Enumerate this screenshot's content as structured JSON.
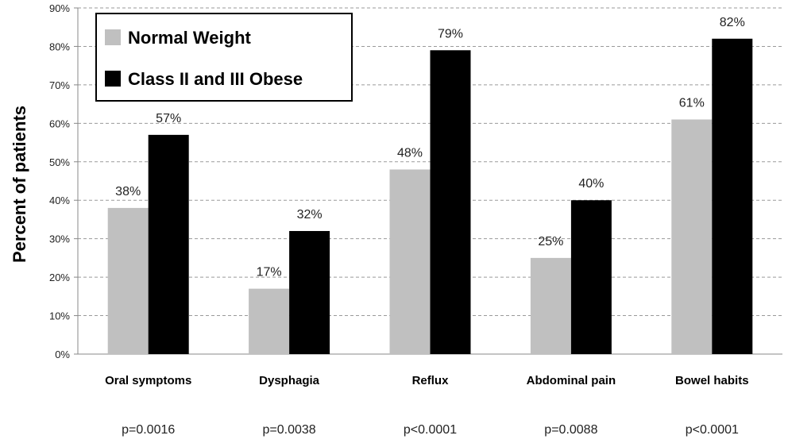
{
  "chart_data": {
    "type": "bar",
    "title": "",
    "xlabel": "",
    "ylabel": "Percent of patients",
    "ylim": [
      0,
      90
    ],
    "ytick_step": 10,
    "ytick_format": "percent",
    "grid": "horizontal-dashed",
    "legend_position": "top-left",
    "categories": [
      "Oral symptoms",
      "Dysphagia",
      "Reflux",
      "Abdominal pain",
      "Bowel habits"
    ],
    "p_values": [
      "p=0.0016",
      "p=0.0038",
      "p<0.0001",
      "p=0.0088",
      "p<0.0001"
    ],
    "series": [
      {
        "name": "Normal Weight",
        "color": "#c0c0c0",
        "values": [
          38,
          17,
          48,
          25,
          61
        ]
      },
      {
        "name": "Class II and III Obese",
        "color": "#000000",
        "values": [
          57,
          32,
          79,
          40,
          82
        ]
      }
    ]
  }
}
